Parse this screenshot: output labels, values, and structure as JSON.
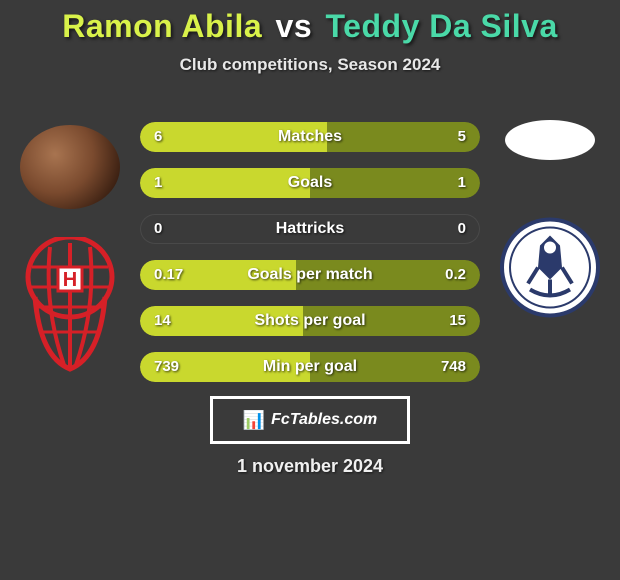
{
  "title": {
    "player1": "Ramon Abila",
    "vs": "vs",
    "player2": "Teddy Da Silva",
    "p1_color": "#d9f24a",
    "p2_color": "#4ad9a8"
  },
  "subtitle": "Club competitions, Season 2024",
  "background_color": "#3a3a3a",
  "bars": [
    {
      "label": "Matches",
      "left_val": "6",
      "right_val": "5",
      "left_pct": 55,
      "right_pct": 45,
      "left_color": "#c9d82e",
      "right_color": "#7a8a1e"
    },
    {
      "label": "Goals",
      "left_val": "1",
      "right_val": "1",
      "left_pct": 50,
      "right_pct": 50,
      "left_color": "#c9d82e",
      "right_color": "#7a8a1e"
    },
    {
      "label": "Hattricks",
      "left_val": "0",
      "right_val": "0",
      "left_pct": 0,
      "right_pct": 0,
      "left_color": "#c9d82e",
      "right_color": "#7a8a1e"
    },
    {
      "label": "Goals per match",
      "left_val": "0.17",
      "right_val": "0.2",
      "left_pct": 46,
      "right_pct": 54,
      "left_color": "#c9d82e",
      "right_color": "#7a8a1e"
    },
    {
      "label": "Shots per goal",
      "left_val": "14",
      "right_val": "15",
      "left_pct": 48,
      "right_pct": 52,
      "left_color": "#c9d82e",
      "right_color": "#7a8a1e"
    },
    {
      "label": "Min per goal",
      "left_val": "739",
      "right_val": "748",
      "left_pct": 50,
      "right_pct": 50,
      "left_color": "#c9d82e",
      "right_color": "#7a8a1e"
    }
  ],
  "bar_style": {
    "height": 30,
    "gap": 16,
    "radius": 15,
    "track_color": "#3a3a3a",
    "label_fontsize": 16,
    "value_fontsize": 15,
    "text_color": "#ffffff"
  },
  "footer": {
    "site": "FcTables.com",
    "icon": "📊",
    "border_color": "#ffffff"
  },
  "date": "1 november 2024",
  "clubs": {
    "left": {
      "name": "Huracán",
      "primary": "#d62027",
      "secondary": "#ffffff"
    },
    "right": {
      "name": "Gimnasia LP",
      "primary": "#2b3a6b",
      "secondary": "#ffffff"
    }
  }
}
